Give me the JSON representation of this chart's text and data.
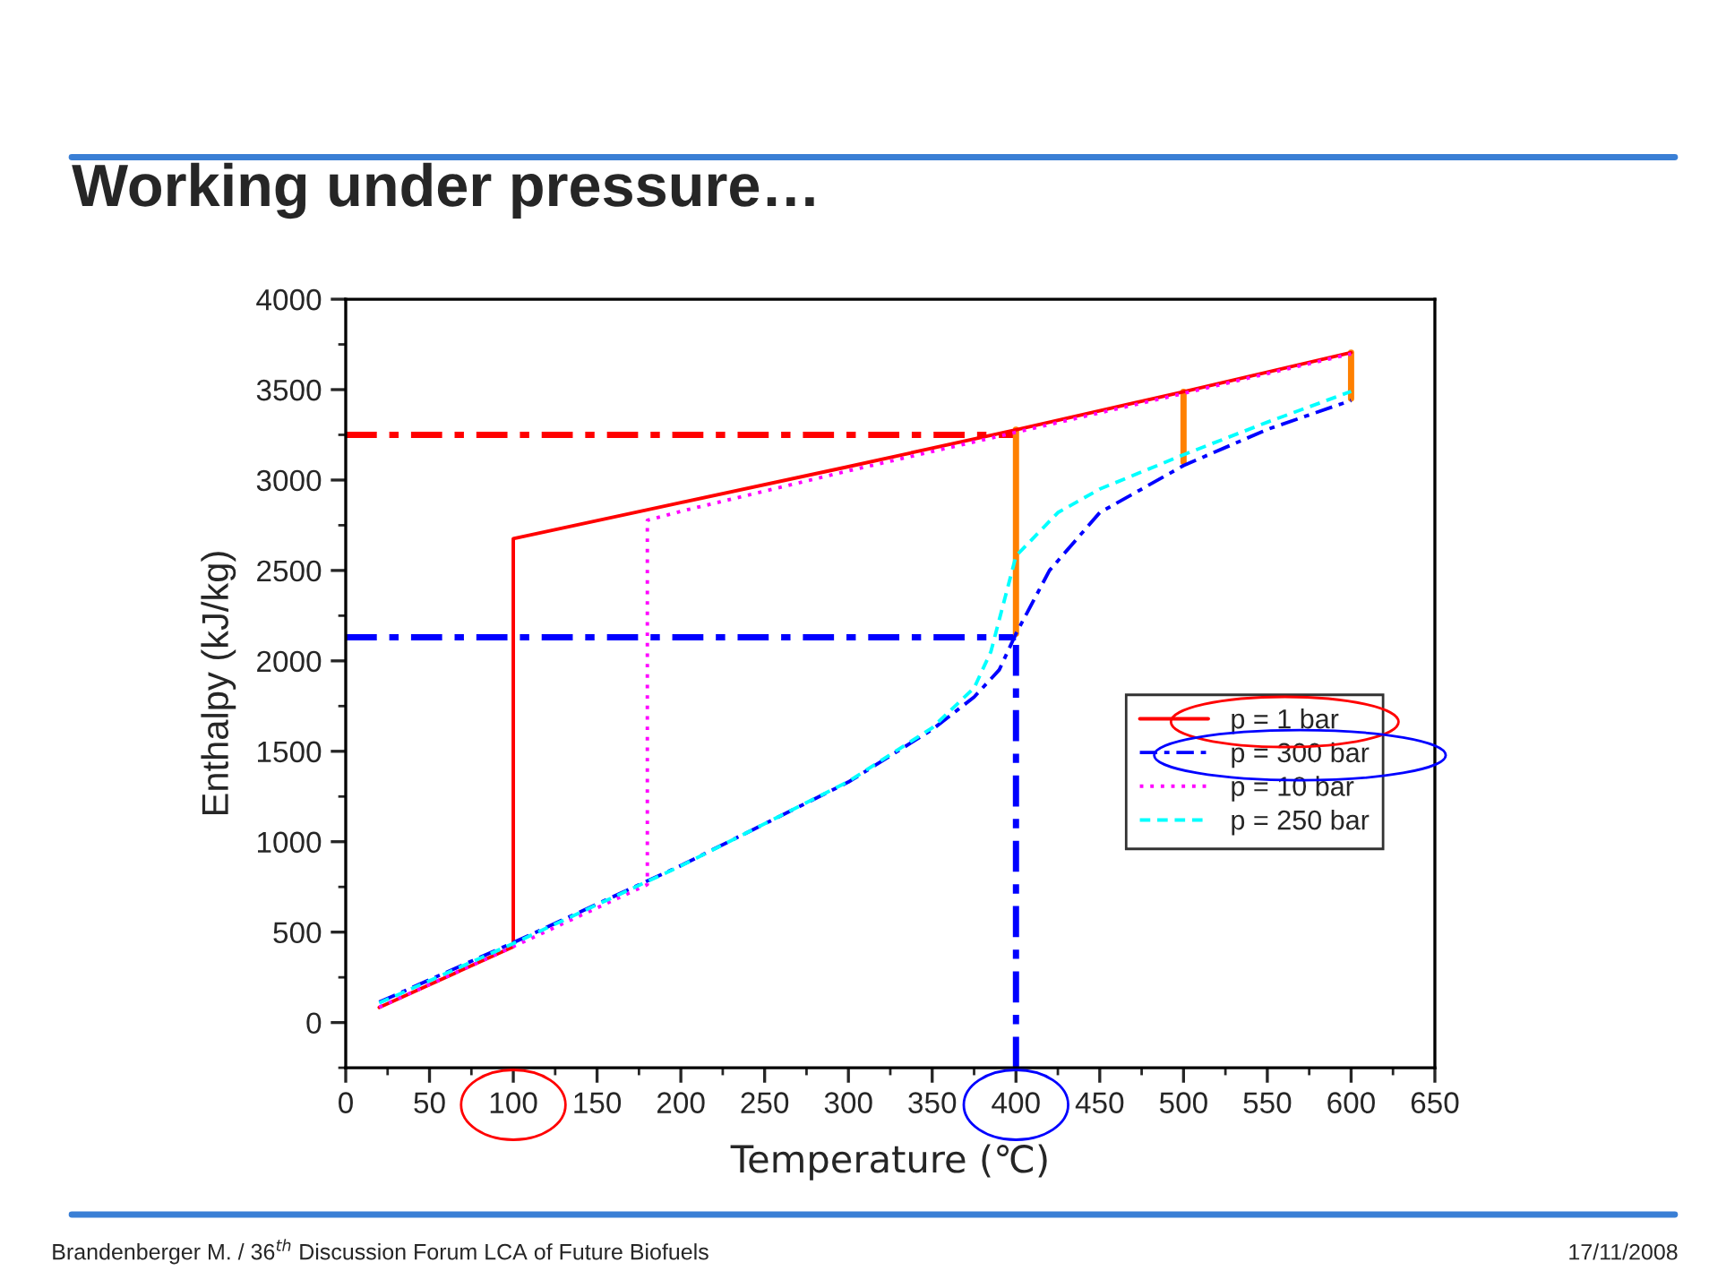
{
  "chart_data": {
    "type": "line",
    "title": "Working under pressure…",
    "xlabel": "Temperature (℃)",
    "ylabel": "Enthalpy (kJ/kg)",
    "xlim": [
      0,
      650
    ],
    "xticks": [
      0,
      50,
      100,
      150,
      200,
      250,
      300,
      350,
      400,
      450,
      500,
      550,
      600,
      650
    ],
    "ylim": [
      -250,
      4000
    ],
    "yticks": [
      0,
      500,
      1000,
      1500,
      2000,
      2500,
      3000,
      3500,
      4000
    ],
    "grid": false,
    "legend": "right",
    "annotations": [
      "Brandenberger M. / 36$^{th}$ Discussion Forum LCA of Future Biofuels",
      "17/11/2008"
    ],
    "series": [
      {
        "name": "p = 1 bar",
        "color": "#ff0000",
        "line_style": "solid",
        "x": [
          20,
          100,
          100,
          200,
          300,
          400,
          500,
          600
        ],
        "values": [
          84,
          419,
          2676,
          2875,
          3074,
          3278,
          3488,
          3705
        ]
      },
      {
        "name": "p = 300 bar",
        "color": "#0000ff",
        "line_style": "dashdot",
        "x": [
          20,
          100,
          200,
          300,
          350,
          375,
          390,
          400,
          420,
          450,
          500,
          550,
          600
        ],
        "values": [
          113,
          442,
          868,
          1330,
          1620,
          1800,
          1950,
          2150,
          2500,
          2820,
          3080,
          3280,
          3440
        ]
      },
      {
        "name": "p = 10 bar",
        "color": "#ff00ff",
        "line_style": "dotted",
        "x": [
          20,
          100,
          180,
          180,
          200,
          300,
          400,
          500,
          600
        ],
        "values": [
          85,
          420,
          763,
          2778,
          2827,
          3051,
          3264,
          3479,
          3698
        ]
      },
      {
        "name": "p = 250 bar",
        "color": "#00ffff",
        "line_style": "dashed",
        "x": [
          20,
          100,
          200,
          300,
          350,
          375,
          385,
          400,
          425,
          450,
          500,
          550,
          600
        ],
        "values": [
          108,
          437,
          866,
          1333,
          1630,
          1850,
          2050,
          2580,
          2820,
          2950,
          3140,
          3320,
          3490
        ]
      },
      {
        "color": "#ff0000",
        "line_style": "dashdot",
        "x": [
          0,
          400
        ],
        "values": [
          3250,
          3250
        ]
      },
      {
        "color": "#0000ff",
        "line_style": "dashdot",
        "x": [
          0,
          400
        ],
        "values": [
          2130,
          2130
        ]
      },
      {
        "color": "#0000ff",
        "line_style": "dashdot",
        "x": [
          400,
          400
        ],
        "values": [
          -250,
          2130
        ]
      },
      {
        "color": "#ff8000",
        "line_style": "solid",
        "x": [
          400,
          400
        ],
        "values": [
          3278,
          2150
        ]
      },
      {
        "color": "#ff8000",
        "line_style": "solid",
        "x": [
          500,
          500
        ],
        "values": [
          3488,
          3100
        ]
      },
      {
        "color": "#ff8000",
        "line_style": "solid",
        "x": [
          600,
          600
        ],
        "values": [
          3705,
          3450
        ]
      }
    ]
  }
}
